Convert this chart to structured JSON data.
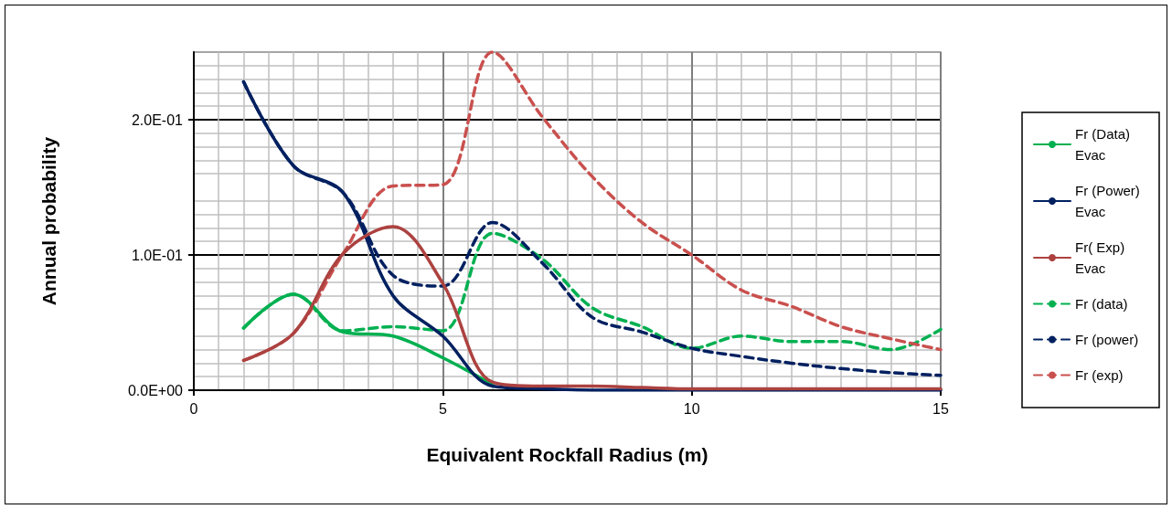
{
  "chart_data": {
    "type": "line",
    "xlabel": "Equivalent Rockfall Radius (m)",
    "ylabel": "Annual probability",
    "x": [
      1,
      2,
      3,
      4,
      5,
      6,
      7,
      8,
      9,
      10,
      11,
      12,
      13,
      14,
      15
    ],
    "xlim": [
      0,
      15
    ],
    "xticks": [
      0,
      5,
      10,
      15
    ],
    "ylim": [
      0,
      0.25
    ],
    "yticks": [
      {
        "value": 0,
        "label": "0.0E+00"
      },
      {
        "value": 0.1,
        "label": "1.0E-01"
      },
      {
        "value": 0.2,
        "label": "2.0E-01"
      }
    ],
    "grid": true,
    "legend": "right",
    "marker": "none",
    "series": [
      {
        "name": "Fr (Data) Evac",
        "color": "#00b050",
        "line_style": "solid",
        "values": [
          0.046,
          0.071,
          0.043,
          0.04,
          0.024,
          0.004,
          null,
          null,
          null,
          null,
          null,
          null,
          null,
          null,
          null
        ]
      },
      {
        "name": "Fr (Power) Evac",
        "color": "#002060",
        "line_style": "solid",
        "values": [
          0.228,
          0.166,
          0.146,
          0.07,
          0.04,
          0.003,
          0.001,
          0,
          0,
          0,
          0,
          0,
          0,
          0,
          0
        ]
      },
      {
        "name": "Fr( Exp) Evac",
        "color": "#ac4240",
        "line_style": "solid",
        "values": [
          0.022,
          0.042,
          0.101,
          0.121,
          0.079,
          0.006,
          0.003,
          0.003,
          0.002,
          0.001,
          0.001,
          0.001,
          0.001,
          0.001,
          0.001
        ]
      },
      {
        "name": "Fr (data)",
        "color": "#00b050",
        "line_style": "dashed",
        "values": [
          0.046,
          0.071,
          0.044,
          0.047,
          0.044,
          0.116,
          0.097,
          0.061,
          0.047,
          0.031,
          0.04,
          0.036,
          0.036,
          0.03,
          0.045
        ]
      },
      {
        "name": "Fr (power)",
        "color": "#002060",
        "line_style": "dashed",
        "values": [
          0.228,
          0.166,
          0.146,
          0.085,
          0.077,
          0.124,
          0.094,
          0.054,
          0.043,
          0.031,
          0.025,
          0.02,
          0.016,
          0.013,
          0.011
        ]
      },
      {
        "name": "Fr (exp)",
        "color": "#c9504e",
        "line_style": "dashed",
        "values": [
          0.022,
          0.042,
          0.101,
          0.151,
          0.152,
          0.25,
          0.202,
          0.158,
          0.124,
          0.1,
          0.074,
          0.062,
          0.047,
          0.038,
          0.03
        ]
      }
    ]
  }
}
